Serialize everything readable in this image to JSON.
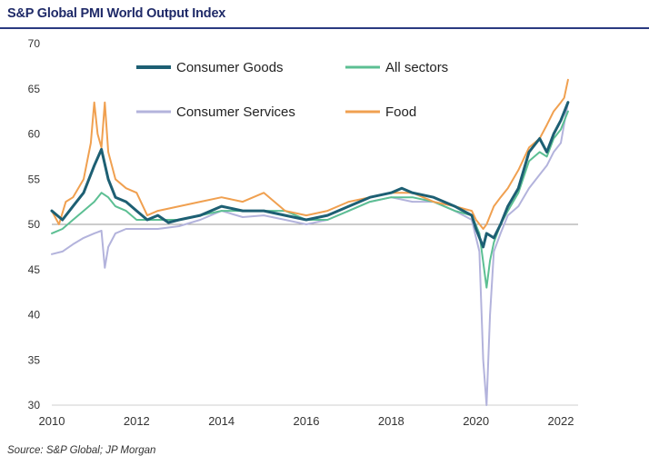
{
  "title": "S&P Global PMI World Output Index",
  "source": "Source: S&P Global; JP Morgan",
  "chart_data": {
    "type": "line",
    "title": "S&P Global PMI World Output Index",
    "xlabel": "",
    "ylabel": "",
    "xlim": [
      2010,
      2022.4
    ],
    "ylim": [
      30,
      70
    ],
    "reference_line": 50,
    "grid": false,
    "legend_position": "top",
    "x_ticks": [
      "2010",
      "2012",
      "2014",
      "2016",
      "2018",
      "2020",
      "2022"
    ],
    "y_ticks": [
      "30",
      "35",
      "40",
      "45",
      "50",
      "55",
      "60",
      "65",
      "70"
    ],
    "series": [
      {
        "name": "Consumer Goods",
        "color": "#1d5f73",
        "x": [
          2010.0,
          2010.25,
          2010.5,
          2010.75,
          2011.0,
          2011.17,
          2011.33,
          2011.5,
          2011.75,
          2012.0,
          2012.25,
          2012.5,
          2012.75,
          2013.0,
          2013.5,
          2014.0,
          2014.5,
          2015.0,
          2015.5,
          2016.0,
          2016.5,
          2017.0,
          2017.5,
          2018.0,
          2018.25,
          2018.5,
          2019.0,
          2019.5,
          2019.9,
          2020.0,
          2020.17,
          2020.25,
          2020.42,
          2020.58,
          2020.75,
          2021.0,
          2021.25,
          2021.5,
          2021.67,
          2021.83,
          2022.0,
          2022.17
        ],
        "values": [
          51.5,
          50.5,
          52.0,
          53.5,
          56.5,
          58.3,
          55.0,
          53.0,
          52.5,
          51.5,
          50.5,
          51.0,
          50.2,
          50.5,
          51.0,
          52.0,
          51.5,
          51.5,
          51.0,
          50.5,
          51.0,
          52.0,
          53.0,
          53.5,
          54.0,
          53.5,
          53.0,
          52.0,
          51.0,
          49.5,
          47.5,
          49.0,
          48.5,
          50.0,
          52.0,
          54.0,
          58.0,
          59.5,
          58.0,
          60.0,
          61.5,
          63.5
        ]
      },
      {
        "name": "All sectors",
        "color": "#5cbf93",
        "x": [
          2010.0,
          2010.25,
          2010.5,
          2010.75,
          2011.0,
          2011.17,
          2011.33,
          2011.5,
          2011.75,
          2012.0,
          2012.5,
          2013.0,
          2013.5,
          2014.0,
          2014.5,
          2015.0,
          2015.5,
          2016.0,
          2016.5,
          2017.0,
          2017.5,
          2018.0,
          2018.5,
          2019.0,
          2019.5,
          2019.9,
          2020.08,
          2020.25,
          2020.33,
          2020.42,
          2020.58,
          2020.75,
          2021.0,
          2021.25,
          2021.5,
          2021.67,
          2021.83,
          2022.0,
          2022.17
        ],
        "values": [
          49.0,
          49.5,
          50.5,
          51.5,
          52.5,
          53.5,
          53.0,
          52.0,
          51.5,
          50.5,
          50.5,
          50.5,
          51.0,
          51.5,
          51.5,
          51.5,
          51.5,
          50.5,
          50.5,
          51.5,
          52.5,
          53.0,
          53.0,
          52.5,
          51.5,
          51.0,
          49.0,
          43.0,
          46.0,
          48.0,
          50.0,
          51.5,
          53.5,
          57.0,
          58.0,
          57.5,
          59.5,
          60.5,
          62.5
        ]
      },
      {
        "name": "Consumer Services",
        "color": "#b3b3dc",
        "x": [
          2010.0,
          2010.25,
          2010.5,
          2010.75,
          2011.0,
          2011.17,
          2011.25,
          2011.33,
          2011.5,
          2011.75,
          2012.0,
          2012.5,
          2013.0,
          2013.5,
          2014.0,
          2014.5,
          2015.0,
          2015.5,
          2016.0,
          2016.5,
          2017.0,
          2017.5,
          2018.0,
          2018.5,
          2019.0,
          2019.5,
          2019.9,
          2020.08,
          2020.17,
          2020.25,
          2020.33,
          2020.42,
          2020.58,
          2020.75,
          2021.0,
          2021.25,
          2021.5,
          2021.67,
          2021.83,
          2022.0,
          2022.17
        ],
        "values": [
          46.7,
          47.0,
          47.8,
          48.5,
          49.0,
          49.3,
          45.2,
          47.5,
          49.0,
          49.5,
          49.5,
          49.5,
          49.8,
          50.5,
          51.5,
          50.8,
          51.0,
          50.5,
          50.0,
          50.5,
          51.5,
          52.5,
          53.0,
          52.5,
          52.5,
          51.5,
          50.5,
          47.0,
          35.0,
          30.0,
          40.0,
          47.0,
          49.0,
          51.0,
          52.0,
          54.0,
          55.5,
          56.5,
          58.0,
          59.0,
          63.5
        ]
      },
      {
        "name": "Food",
        "color": "#f0a050",
        "x": [
          2010.0,
          2010.17,
          2010.33,
          2010.5,
          2010.75,
          2010.92,
          2011.0,
          2011.08,
          2011.17,
          2011.25,
          2011.33,
          2011.5,
          2011.75,
          2012.0,
          2012.25,
          2012.5,
          2013.0,
          2013.5,
          2014.0,
          2014.5,
          2015.0,
          2015.5,
          2016.0,
          2016.5,
          2017.0,
          2017.5,
          2018.0,
          2018.5,
          2019.0,
          2019.5,
          2019.9,
          2020.0,
          2020.17,
          2020.25,
          2020.42,
          2020.58,
          2020.75,
          2021.0,
          2021.25,
          2021.5,
          2021.67,
          2021.83,
          2022.0,
          2022.08,
          2022.17
        ],
        "values": [
          51.5,
          50.0,
          52.5,
          53.0,
          55.0,
          59.0,
          63.5,
          60.0,
          58.5,
          63.5,
          58.0,
          55.0,
          54.0,
          53.5,
          51.0,
          51.5,
          52.0,
          52.5,
          53.0,
          52.5,
          53.5,
          51.5,
          51.0,
          51.5,
          52.5,
          53.0,
          53.5,
          53.5,
          52.5,
          52.0,
          51.5,
          50.5,
          49.5,
          50.0,
          52.0,
          53.0,
          54.0,
          56.0,
          58.5,
          59.5,
          61.0,
          62.5,
          63.5,
          64.0,
          66.0
        ]
      }
    ]
  }
}
